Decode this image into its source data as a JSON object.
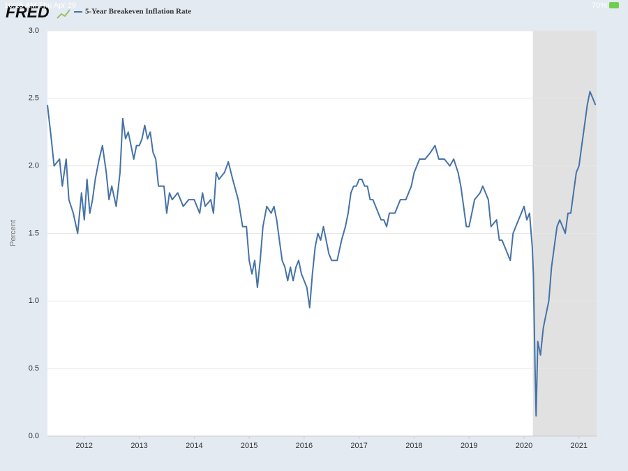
{
  "status_bar": {
    "time": "10:15 AM  Thu Apr 29",
    "battery": "70%"
  },
  "logo": "FRED",
  "chart_data": {
    "type": "line",
    "y_label": "Percent",
    "x": [
      2011.33,
      2011.4,
      2011.45,
      2011.55,
      2011.6,
      2011.67,
      2011.72,
      2011.8,
      2011.88,
      2011.95,
      2012.0,
      2012.05,
      2012.1,
      2012.15,
      2012.2,
      2012.27,
      2012.33,
      2012.4,
      2012.45,
      2012.5,
      2012.58,
      2012.65,
      2012.7,
      2012.75,
      2012.8,
      2012.9,
      2012.95,
      2013.0,
      2013.05,
      2013.1,
      2013.15,
      2013.2,
      2013.25,
      2013.3,
      2013.35,
      2013.45,
      2013.5,
      2013.55,
      2013.6,
      2013.7,
      2013.8,
      2013.9,
      2014.0,
      2014.1,
      2014.15,
      2014.2,
      2014.3,
      2014.35,
      2014.4,
      2014.45,
      2014.55,
      2014.62,
      2014.7,
      2014.8,
      2014.88,
      2014.95,
      2015.0,
      2015.05,
      2015.1,
      2015.15,
      2015.2,
      2015.25,
      2015.32,
      2015.4,
      2015.45,
      2015.5,
      2015.55,
      2015.6,
      2015.65,
      2015.7,
      2015.75,
      2015.8,
      2015.85,
      2015.9,
      2015.95,
      2016.05,
      2016.1,
      2016.15,
      2016.2,
      2016.25,
      2016.3,
      2016.35,
      2016.4,
      2016.45,
      2016.5,
      2016.6,
      2016.68,
      2016.75,
      2016.8,
      2016.85,
      2016.9,
      2016.95,
      2017.0,
      2017.05,
      2017.1,
      2017.15,
      2017.2,
      2017.25,
      2017.35,
      2017.4,
      2017.45,
      2017.5,
      2017.55,
      2017.65,
      2017.75,
      2017.85,
      2017.95,
      2018.0,
      2018.05,
      2018.1,
      2018.2,
      2018.3,
      2018.38,
      2018.45,
      2018.55,
      2018.65,
      2018.72,
      2018.8,
      2018.85,
      2018.9,
      2018.95,
      2019.0,
      2019.05,
      2019.1,
      2019.2,
      2019.25,
      2019.3,
      2019.35,
      2019.4,
      2019.5,
      2019.55,
      2019.6,
      2019.65,
      2019.7,
      2019.75,
      2019.8,
      2019.85,
      2019.9,
      2019.95,
      2020.0,
      2020.05,
      2020.1,
      2020.15,
      2020.17,
      2020.2,
      2020.22,
      2020.25,
      2020.3,
      2020.35,
      2020.4,
      2020.45,
      2020.5,
      2020.55,
      2020.6,
      2020.65,
      2020.7,
      2020.75,
      2020.8,
      2020.85,
      2020.9,
      2020.95,
      2021.0,
      2021.05,
      2021.1,
      2021.15,
      2021.2,
      2021.25,
      2021.3
    ],
    "series": [
      {
        "name": "5-Year Breakeven Inflation Rate",
        "color": "#4572a7",
        "values": [
          2.45,
          2.2,
          2.0,
          2.05,
          1.85,
          2.05,
          1.75,
          1.65,
          1.5,
          1.8,
          1.6,
          1.9,
          1.65,
          1.75,
          1.9,
          2.05,
          2.15,
          1.95,
          1.75,
          1.85,
          1.7,
          1.95,
          2.35,
          2.2,
          2.25,
          2.05,
          2.15,
          2.15,
          2.2,
          2.3,
          2.2,
          2.25,
          2.1,
          2.05,
          1.85,
          1.85,
          1.65,
          1.8,
          1.75,
          1.8,
          1.7,
          1.75,
          1.75,
          1.65,
          1.8,
          1.7,
          1.75,
          1.65,
          1.95,
          1.9,
          1.95,
          2.03,
          1.9,
          1.75,
          1.55,
          1.55,
          1.3,
          1.2,
          1.3,
          1.1,
          1.3,
          1.55,
          1.7,
          1.65,
          1.7,
          1.6,
          1.45,
          1.3,
          1.25,
          1.15,
          1.25,
          1.15,
          1.25,
          1.3,
          1.2,
          1.1,
          0.95,
          1.2,
          1.4,
          1.5,
          1.45,
          1.55,
          1.45,
          1.35,
          1.3,
          1.3,
          1.45,
          1.55,
          1.65,
          1.8,
          1.85,
          1.85,
          1.9,
          1.9,
          1.85,
          1.85,
          1.75,
          1.75,
          1.65,
          1.6,
          1.6,
          1.55,
          1.65,
          1.65,
          1.75,
          1.75,
          1.85,
          1.95,
          2.0,
          2.05,
          2.05,
          2.1,
          2.15,
          2.05,
          2.05,
          2.0,
          2.05,
          1.95,
          1.85,
          1.7,
          1.55,
          1.55,
          1.65,
          1.75,
          1.8,
          1.85,
          1.8,
          1.75,
          1.55,
          1.6,
          1.45,
          1.45,
          1.4,
          1.35,
          1.3,
          1.5,
          1.55,
          1.6,
          1.65,
          1.7,
          1.6,
          1.65,
          1.4,
          1.2,
          0.5,
          0.15,
          0.7,
          0.6,
          0.8,
          0.9,
          1.0,
          1.25,
          1.4,
          1.55,
          1.6,
          1.55,
          1.5,
          1.65,
          1.65,
          1.8,
          1.95,
          2.0,
          2.15,
          2.3,
          2.45,
          2.55,
          2.5,
          2.45
        ]
      }
    ],
    "recession": [
      2020.16,
      2021.32
    ],
    "recession_color": "#e1e1e1",
    "xlim": [
      2011.33,
      2021.32
    ],
    "xticks": [
      2012,
      2013,
      2014,
      2015,
      2016,
      2017,
      2018,
      2019,
      2020,
      2021
    ],
    "ylim": [
      0,
      3
    ],
    "yticks": [
      {
        "value": 0,
        "label": "0.0"
      },
      0.5,
      {
        "value": 1,
        "label": "1.0"
      },
      1.5,
      {
        "value": 2,
        "label": "2.0"
      },
      2.5,
      {
        "value": 3,
        "label": "3.0"
      }
    ],
    "grid": true
  }
}
